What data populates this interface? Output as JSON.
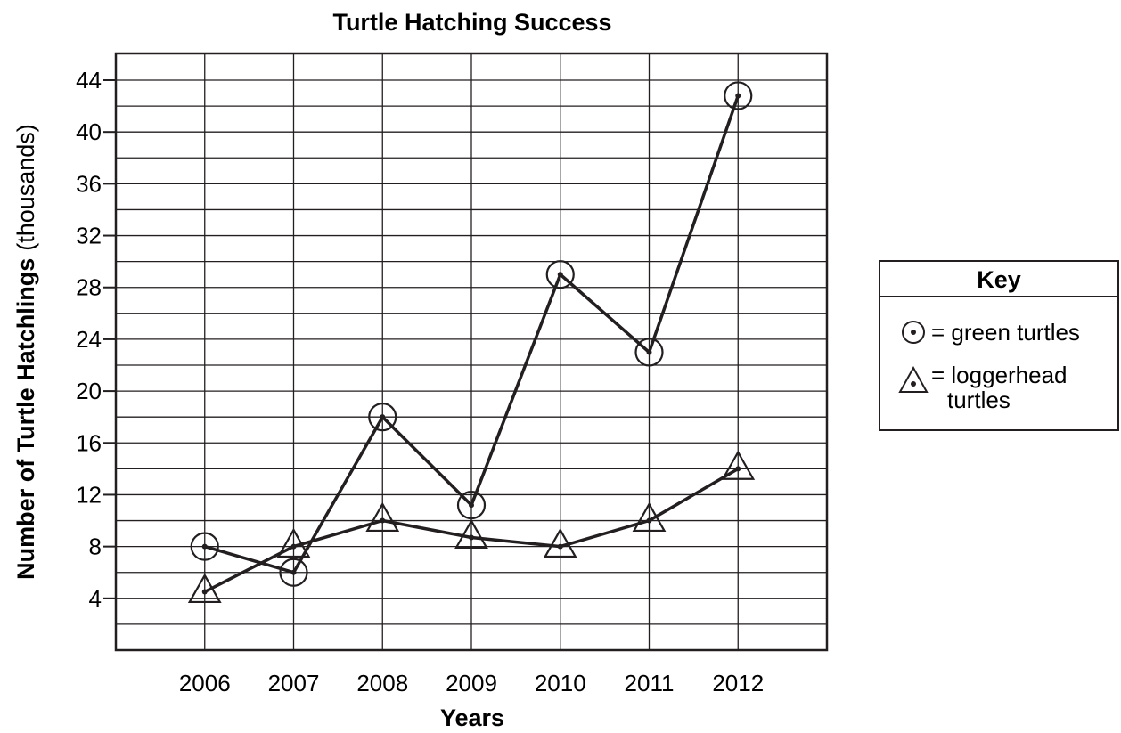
{
  "chart_data": {
    "type": "line",
    "title": "Turtle Hatching Success",
    "xlabel": "Years",
    "ylabel_bold": "Number of Turtle Hatchlings",
    "ylabel_unit": "(thousands)",
    "categories": [
      "2006",
      "2007",
      "2008",
      "2009",
      "2010",
      "2011",
      "2012"
    ],
    "y_ticks": [
      "4",
      "8",
      "12",
      "16",
      "20",
      "24",
      "28",
      "32",
      "36",
      "40",
      "44"
    ],
    "ylim": [
      0,
      44
    ],
    "x_range": [
      "2005",
      "2013"
    ],
    "grid": true,
    "legend_position": "right",
    "series": [
      {
        "name": "green turtles",
        "marker": "circle-dot",
        "values": [
          8,
          6,
          18,
          11.2,
          29,
          23,
          42.8
        ]
      },
      {
        "name": "loggerhead turtles",
        "marker": "triangle-dot",
        "values": [
          4.5,
          8,
          10,
          8.7,
          8,
          10,
          14
        ]
      }
    ]
  },
  "legend": {
    "title": "Key",
    "green_label": "= green turtles",
    "loggerhead_line1": "= loggerhead",
    "loggerhead_line2": "turtles"
  },
  "colors": {
    "ink": "#231f20",
    "background": "#ffffff"
  }
}
